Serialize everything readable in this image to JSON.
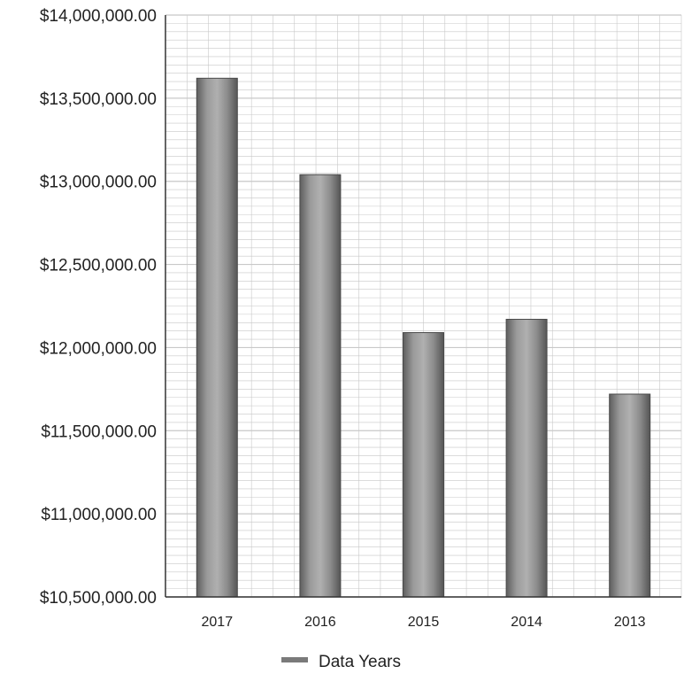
{
  "chart_data": {
    "type": "bar",
    "title": "",
    "xlabel": "",
    "ylabel": "",
    "categories": [
      "2017",
      "2016",
      "2015",
      "2014",
      "2013"
    ],
    "series": [
      {
        "name": "Data Years",
        "values": [
          13620000,
          13040000,
          12090000,
          12170000,
          11720000
        ]
      }
    ],
    "ylim": [
      10500000,
      14000000
    ],
    "yticks": [
      10500000,
      11000000,
      11500000,
      12000000,
      12500000,
      13000000,
      13500000,
      14000000
    ],
    "ytick_labels": [
      "$10,500,000.00",
      "$11,000,000.00",
      "$11,500,000.00",
      "$12,000,000.00",
      "$12,500,000.00",
      "$13,000,000.00",
      "$13,500,000.00",
      "$14,000,000.00"
    ],
    "grid": true,
    "legend": "bottom",
    "colors": {
      "bar": "#8a8a8a",
      "bar_dark": "#5a5a5a",
      "bar_light": "#b5b5b5",
      "grid": "#c8c8c8",
      "axis": "#333333"
    }
  }
}
